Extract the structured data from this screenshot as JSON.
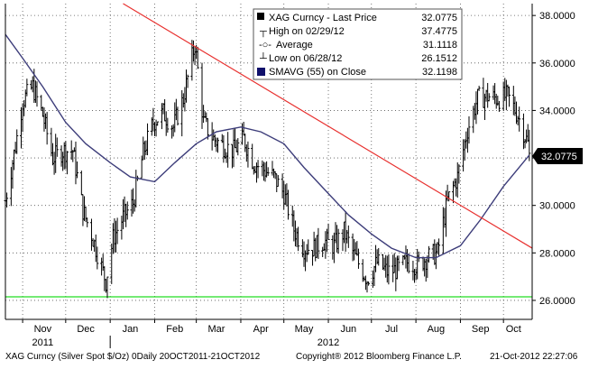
{
  "chart_data": {
    "type": "bar",
    "subtype": "ohlc-daily",
    "ylim": [
      25.2,
      38.5
    ],
    "y_ticks": [
      26,
      28,
      30,
      32,
      34,
      36,
      38
    ],
    "y_tick_labels": [
      "26.0000",
      "28.0000",
      "30.0000",
      "32.0000",
      "34.0000",
      "36.0000",
      "38.0000"
    ],
    "x_range": [
      "2011-10-20",
      "2012-10-21"
    ],
    "x_month_labels": [
      "Nov",
      "Dec",
      "Jan",
      "Feb",
      "Mar",
      "Apr",
      "May",
      "Jun",
      "Jul",
      "Aug",
      "Sep",
      "Oct"
    ],
    "x_year_labels": [
      "2011",
      "2012"
    ],
    "last_price_label": "32.0775",
    "legend": {
      "title": "XAG Curncy - Last Price",
      "title_value": "32.0775",
      "rows": [
        {
          "label": "High on 02/29/12",
          "value": "37.4775"
        },
        {
          "label": "Average",
          "value": "31.1118"
        },
        {
          "label": "Low on 06/28/12",
          "value": "26.1512"
        },
        {
          "label": "SMAVG (55) on Close",
          "value": "32.1198"
        }
      ]
    },
    "price_series": {
      "color": "#000000",
      "anchor_points": [
        [
          "2011-10-20",
          30.2
        ],
        [
          "2011-10-27",
          32.5
        ],
        [
          "2011-11-01",
          34.4
        ],
        [
          "2011-11-08",
          35.0
        ],
        [
          "2011-11-15",
          33.8
        ],
        [
          "2011-11-22",
          32.0
        ],
        [
          "2011-11-29",
          32.3
        ],
        [
          "2011-12-06",
          32.3
        ],
        [
          "2011-12-13",
          29.8
        ],
        [
          "2011-12-20",
          28.6
        ],
        [
          "2011-12-29",
          26.8
        ],
        [
          "2012-01-03",
          28.6
        ],
        [
          "2012-01-10",
          29.5
        ],
        [
          "2012-01-17",
          30.1
        ],
        [
          "2012-01-24",
          32.2
        ],
        [
          "2012-01-31",
          33.5
        ],
        [
          "2012-02-07",
          33.9
        ],
        [
          "2012-02-14",
          33.3
        ],
        [
          "2012-02-21",
          34.5
        ],
        [
          "2012-02-29",
          36.8
        ],
        [
          "2012-03-06",
          33.5
        ],
        [
          "2012-03-13",
          32.8
        ],
        [
          "2012-03-20",
          32.5
        ],
        [
          "2012-03-27",
          32.3
        ],
        [
          "2012-04-03",
          32.8
        ],
        [
          "2012-04-10",
          31.8
        ],
        [
          "2012-04-17",
          31.5
        ],
        [
          "2012-04-24",
          31.2
        ],
        [
          "2012-05-01",
          30.5
        ],
        [
          "2012-05-08",
          29.0
        ],
        [
          "2012-05-15",
          28.2
        ],
        [
          "2012-05-22",
          28.2
        ],
        [
          "2012-05-29",
          28.5
        ],
        [
          "2012-06-05",
          28.3
        ],
        [
          "2012-06-12",
          28.9
        ],
        [
          "2012-06-19",
          27.9
        ],
        [
          "2012-06-28",
          26.9
        ],
        [
          "2012-07-05",
          27.6
        ],
        [
          "2012-07-12",
          27.2
        ],
        [
          "2012-07-19",
          27.3
        ],
        [
          "2012-07-26",
          27.6
        ],
        [
          "2012-08-02",
          27.5
        ],
        [
          "2012-08-09",
          27.8
        ],
        [
          "2012-08-16",
          28.0
        ],
        [
          "2012-08-23",
          30.2
        ],
        [
          "2012-08-30",
          31.2
        ],
        [
          "2012-09-06",
          33.2
        ],
        [
          "2012-09-13",
          34.5
        ],
        [
          "2012-09-20",
          34.6
        ],
        [
          "2012-09-27",
          34.5
        ],
        [
          "2012-10-04",
          34.6
        ],
        [
          "2012-10-11",
          33.8
        ],
        [
          "2012-10-18",
          32.6
        ],
        [
          "2012-10-19",
          32.08
        ]
      ]
    },
    "sma_series": {
      "name": "SMAVG (55) on Close",
      "color": "#3d3d7a",
      "points": [
        [
          "2011-10-20",
          37.2
        ],
        [
          "2011-11-01",
          36.2
        ],
        [
          "2011-11-15",
          35.0
        ],
        [
          "2011-12-01",
          33.5
        ],
        [
          "2011-12-15",
          32.6
        ],
        [
          "2012-01-01",
          31.8
        ],
        [
          "2012-01-15",
          31.2
        ],
        [
          "2012-02-01",
          31.0
        ],
        [
          "2012-02-15",
          31.8
        ],
        [
          "2012-03-01",
          32.6
        ],
        [
          "2012-03-15",
          33.1
        ],
        [
          "2012-04-01",
          33.3
        ],
        [
          "2012-04-15",
          33.1
        ],
        [
          "2012-05-01",
          32.6
        ],
        [
          "2012-05-15",
          31.6
        ],
        [
          "2012-06-01",
          30.5
        ],
        [
          "2012-06-15",
          29.6
        ],
        [
          "2012-07-01",
          28.8
        ],
        [
          "2012-07-15",
          28.2
        ],
        [
          "2012-08-01",
          27.8
        ],
        [
          "2012-08-15",
          27.8
        ],
        [
          "2012-09-01",
          28.3
        ],
        [
          "2012-09-15",
          29.4
        ],
        [
          "2012-10-01",
          30.8
        ],
        [
          "2012-10-19",
          32.12
        ]
      ]
    },
    "trendline": {
      "color": "#e8312f",
      "points": [
        [
          "2012-01-10",
          38.5
        ],
        [
          "2012-10-21",
          28.2
        ]
      ]
    },
    "support_line": {
      "color": "#22dd22",
      "value": 26.15
    }
  },
  "footer": {
    "left": "XAG Curncy (Silver Spot  $/Oz) 0Daily 20OCT2011-21OCT2012",
    "center": "Copyright® 2012 Bloomberg Finance L.P.",
    "right": "21-Oct-2012 22:27:06"
  }
}
